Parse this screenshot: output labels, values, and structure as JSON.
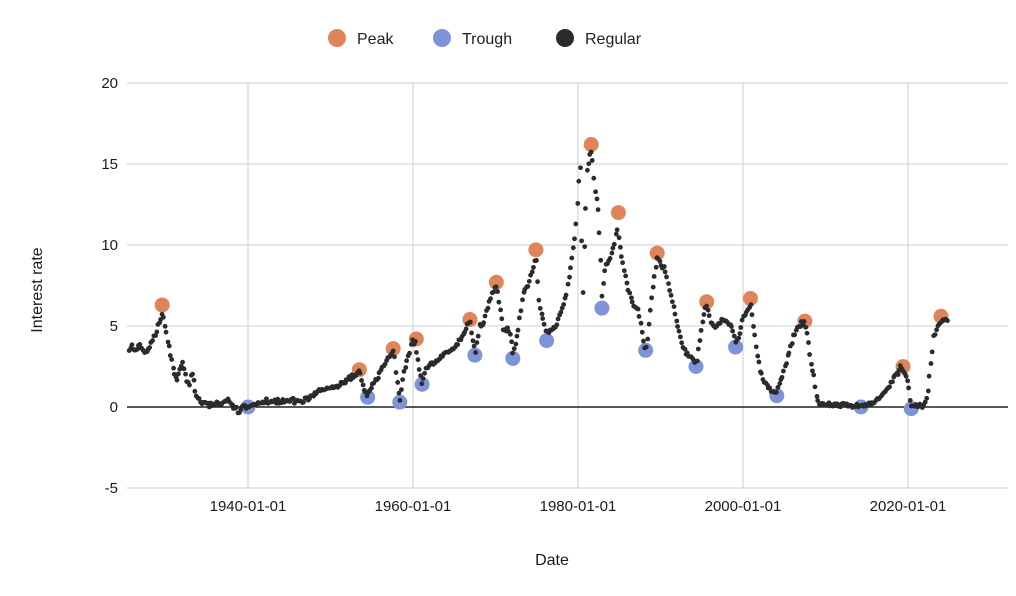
{
  "chart_data": {
    "type": "scatter",
    "title": "",
    "xlabel": "Date",
    "ylabel": "Interest rate",
    "legend": {
      "position": "top-center",
      "items": [
        {
          "label": "Peak",
          "color": "#E0855B"
        },
        {
          "label": "Trough",
          "color": "#7E93D8"
        },
        {
          "label": "Regular",
          "color": "#2B2B2B"
        }
      ]
    },
    "x_axis": {
      "grid": true,
      "ticks": [
        {
          "year": 1940,
          "label": "1940-01-01"
        },
        {
          "year": 1960,
          "label": "1960-01-01"
        },
        {
          "year": 1980,
          "label": "1980-01-01"
        },
        {
          "year": 2000,
          "label": "2000-01-01"
        },
        {
          "year": 2020,
          "label": "2020-01-01"
        }
      ],
      "data_range_years": [
        1925.6,
        2024.8
      ]
    },
    "y_axis": {
      "grid": true,
      "ticks": [
        20,
        15,
        10,
        5,
        0,
        -5
      ],
      "range": [
        -5,
        20
      ],
      "zero_line": true
    },
    "palette": {
      "grid": "#CCCCCC",
      "zero_line": "#212121",
      "text": "#1A1A1A",
      "background": "#FFFFFF"
    },
    "series": [
      {
        "name": "Regular",
        "color": "#2B2B2B",
        "marker": "small-dot",
        "note": "dense (~monthly) interest-rate readings 1926-2024; values below are trend control points [decimal_year, rate] read from the plot",
        "control_points": [
          [
            1925.6,
            3.5
          ],
          [
            1926.0,
            3.8
          ],
          [
            1926.4,
            3.4
          ],
          [
            1926.8,
            3.9
          ],
          [
            1927.2,
            3.6
          ],
          [
            1927.6,
            3.3
          ],
          [
            1928.0,
            3.7
          ],
          [
            1928.4,
            4.1
          ],
          [
            1928.8,
            4.5
          ],
          [
            1929.2,
            5.1
          ],
          [
            1929.6,
            5.8
          ],
          [
            1929.9,
            5.2
          ],
          [
            1930.2,
            4.3
          ],
          [
            1930.6,
            3.3
          ],
          [
            1931.0,
            2.3
          ],
          [
            1931.4,
            1.6
          ],
          [
            1931.8,
            2.4
          ],
          [
            1932.1,
            2.7
          ],
          [
            1932.5,
            1.9
          ],
          [
            1932.9,
            1.2
          ],
          [
            1933.2,
            2.2
          ],
          [
            1933.5,
            1.3
          ],
          [
            1933.8,
            0.6
          ],
          [
            1934.2,
            0.3
          ],
          [
            1935.0,
            0.15
          ],
          [
            1936.0,
            0.15
          ],
          [
            1937.0,
            0.3
          ],
          [
            1937.6,
            0.45
          ],
          [
            1938.1,
            0.1
          ],
          [
            1938.6,
            -0.15
          ],
          [
            1938.85,
            -0.55
          ],
          [
            1939.1,
            -0.1
          ],
          [
            1939.6,
            0.0
          ],
          [
            1940.0,
            0.05
          ],
          [
            1941.0,
            0.2
          ],
          [
            1942.0,
            0.35
          ],
          [
            1944.0,
            0.38
          ],
          [
            1946.0,
            0.38
          ],
          [
            1947.2,
            0.45
          ],
          [
            1947.9,
            0.75
          ],
          [
            1948.6,
            1.0
          ],
          [
            1949.4,
            1.1
          ],
          [
            1950.2,
            1.2
          ],
          [
            1951.0,
            1.35
          ],
          [
            1951.8,
            1.6
          ],
          [
            1952.6,
            1.85
          ],
          [
            1953.2,
            2.1
          ],
          [
            1953.5,
            2.2
          ],
          [
            1954.0,
            1.1
          ],
          [
            1954.5,
            0.65
          ],
          [
            1955.0,
            1.25
          ],
          [
            1955.6,
            1.7
          ],
          [
            1956.2,
            2.4
          ],
          [
            1956.8,
            2.8
          ],
          [
            1957.3,
            3.2
          ],
          [
            1957.7,
            3.5
          ],
          [
            1958.0,
            1.7
          ],
          [
            1958.4,
            0.4
          ],
          [
            1958.9,
            2.2
          ],
          [
            1959.4,
            3.1
          ],
          [
            1959.9,
            4.0
          ],
          [
            1960.3,
            3.9
          ],
          [
            1960.7,
            2.4
          ],
          [
            1961.1,
            1.5
          ],
          [
            1961.6,
            2.3
          ],
          [
            1962.2,
            2.7
          ],
          [
            1963.0,
            2.9
          ],
          [
            1963.8,
            3.3
          ],
          [
            1964.6,
            3.5
          ],
          [
            1965.4,
            3.9
          ],
          [
            1966.0,
            4.4
          ],
          [
            1966.5,
            4.9
          ],
          [
            1966.9,
            5.3
          ],
          [
            1967.3,
            4.0
          ],
          [
            1967.6,
            3.4
          ],
          [
            1968.1,
            5.0
          ],
          [
            1968.6,
            5.3
          ],
          [
            1969.1,
            6.2
          ],
          [
            1969.6,
            7.0
          ],
          [
            1970.1,
            7.5
          ],
          [
            1970.5,
            6.4
          ],
          [
            1971.0,
            4.6
          ],
          [
            1971.4,
            4.9
          ],
          [
            1971.9,
            4.2
          ],
          [
            1972.1,
            3.4
          ],
          [
            1972.6,
            4.3
          ],
          [
            1973.1,
            6.0
          ],
          [
            1973.5,
            7.3
          ],
          [
            1973.9,
            7.4
          ],
          [
            1974.4,
            8.3
          ],
          [
            1974.9,
            9.3
          ],
          [
            1975.3,
            6.2
          ],
          [
            1975.8,
            5.4
          ],
          [
            1976.2,
            4.6
          ],
          [
            1976.8,
            4.8
          ],
          [
            1977.4,
            5.1
          ],
          [
            1978.0,
            6.0
          ],
          [
            1978.6,
            7.0
          ],
          [
            1979.1,
            8.7
          ],
          [
            1979.6,
            10.3
          ],
          [
            1980.0,
            13.0
          ],
          [
            1980.25,
            15.2
          ],
          [
            1980.45,
            9.8
          ],
          [
            1980.6,
            7.2
          ],
          [
            1980.9,
            11.8
          ],
          [
            1981.1,
            14.6
          ],
          [
            1981.45,
            15.6
          ],
          [
            1981.65,
            16.0
          ],
          [
            1982.0,
            13.6
          ],
          [
            1982.4,
            12.6
          ],
          [
            1982.7,
            9.8
          ],
          [
            1982.95,
            6.6
          ],
          [
            1983.3,
            8.7
          ],
          [
            1983.8,
            9.0
          ],
          [
            1984.3,
            9.9
          ],
          [
            1984.8,
            11.0
          ],
          [
            1985.2,
            9.6
          ],
          [
            1985.7,
            8.2
          ],
          [
            1986.2,
            7.1
          ],
          [
            1986.8,
            6.2
          ],
          [
            1987.3,
            6.0
          ],
          [
            1987.7,
            4.9
          ],
          [
            1988.0,
            3.9
          ],
          [
            1988.3,
            3.6
          ],
          [
            1988.7,
            5.6
          ],
          [
            1989.1,
            7.4
          ],
          [
            1989.6,
            9.2
          ],
          [
            1990.1,
            8.7
          ],
          [
            1990.6,
            8.4
          ],
          [
            1991.1,
            7.2
          ],
          [
            1991.6,
            6.2
          ],
          [
            1992.1,
            5.0
          ],
          [
            1992.6,
            4.0
          ],
          [
            1993.1,
            3.3
          ],
          [
            1993.7,
            3.0
          ],
          [
            1994.1,
            2.8
          ],
          [
            1994.4,
            2.7
          ],
          [
            1994.8,
            4.3
          ],
          [
            1995.2,
            5.7
          ],
          [
            1995.6,
            6.2
          ],
          [
            1996.1,
            5.2
          ],
          [
            1996.6,
            4.9
          ],
          [
            1997.1,
            5.2
          ],
          [
            1997.7,
            5.4
          ],
          [
            1998.2,
            5.2
          ],
          [
            1998.7,
            4.8
          ],
          [
            1999.1,
            3.9
          ],
          [
            1999.5,
            4.4
          ],
          [
            2000.0,
            5.4
          ],
          [
            2000.5,
            6.0
          ],
          [
            2000.9,
            6.4
          ],
          [
            2001.3,
            4.9
          ],
          [
            2001.7,
            3.4
          ],
          [
            2002.1,
            2.2
          ],
          [
            2002.6,
            1.5
          ],
          [
            2003.1,
            1.15
          ],
          [
            2003.6,
            0.95
          ],
          [
            2004.1,
            0.85
          ],
          [
            2004.6,
            1.6
          ],
          [
            2005.1,
            2.5
          ],
          [
            2005.7,
            3.5
          ],
          [
            2006.2,
            4.5
          ],
          [
            2006.7,
            5.0
          ],
          [
            2007.1,
            5.2
          ],
          [
            2007.5,
            5.2
          ],
          [
            2007.9,
            4.3
          ],
          [
            2008.2,
            2.8
          ],
          [
            2008.6,
            1.9
          ],
          [
            2008.9,
            0.8
          ],
          [
            2009.2,
            0.25
          ],
          [
            2009.8,
            0.15
          ],
          [
            2010.5,
            0.15
          ],
          [
            2011.2,
            0.1
          ],
          [
            2012.0,
            0.13
          ],
          [
            2013.0,
            0.1
          ],
          [
            2014.3,
            0.06
          ],
          [
            2015.1,
            0.12
          ],
          [
            2015.9,
            0.3
          ],
          [
            2016.7,
            0.55
          ],
          [
            2017.4,
            1.0
          ],
          [
            2018.0,
            1.5
          ],
          [
            2018.6,
            2.0
          ],
          [
            2019.1,
            2.4
          ],
          [
            2019.5,
            2.2
          ],
          [
            2019.9,
            1.7
          ],
          [
            2020.15,
            1.1
          ],
          [
            2020.35,
            0.08
          ],
          [
            2021.0,
            0.07
          ],
          [
            2021.8,
            0.07
          ],
          [
            2022.2,
            0.35
          ],
          [
            2022.5,
            1.3
          ],
          [
            2022.8,
            2.9
          ],
          [
            2023.1,
            4.3
          ],
          [
            2023.5,
            5.0
          ],
          [
            2023.9,
            5.3
          ],
          [
            2024.3,
            5.4
          ],
          [
            2024.8,
            5.35
          ]
        ]
      },
      {
        "name": "Peak",
        "color": "#E0855B",
        "marker": "large-dot",
        "points": [
          [
            1929.6,
            6.3
          ],
          [
            1953.5,
            2.3
          ],
          [
            1957.6,
            3.6
          ],
          [
            1960.4,
            4.2
          ],
          [
            1966.9,
            5.4
          ],
          [
            1970.1,
            7.7
          ],
          [
            1974.9,
            9.7
          ],
          [
            1981.6,
            16.2
          ],
          [
            1984.9,
            12.0
          ],
          [
            1989.6,
            9.5
          ],
          [
            1995.6,
            6.5
          ],
          [
            2000.9,
            6.7
          ],
          [
            2007.5,
            5.3
          ],
          [
            2019.4,
            2.5
          ],
          [
            2024.0,
            5.6
          ]
        ]
      },
      {
        "name": "Trough",
        "color": "#7E93D8",
        "marker": "large-dot",
        "points": [
          [
            1940.0,
            0.0
          ],
          [
            1954.5,
            0.6
          ],
          [
            1958.4,
            0.3
          ],
          [
            1961.1,
            1.4
          ],
          [
            1967.5,
            3.2
          ],
          [
            1972.1,
            3.0
          ],
          [
            1976.2,
            4.1
          ],
          [
            1982.9,
            6.1
          ],
          [
            1988.2,
            3.5
          ],
          [
            1994.3,
            2.5
          ],
          [
            1999.1,
            3.7
          ],
          [
            2004.1,
            0.7
          ],
          [
            2014.3,
            0.0
          ],
          [
            2020.4,
            -0.1
          ]
        ]
      }
    ]
  }
}
